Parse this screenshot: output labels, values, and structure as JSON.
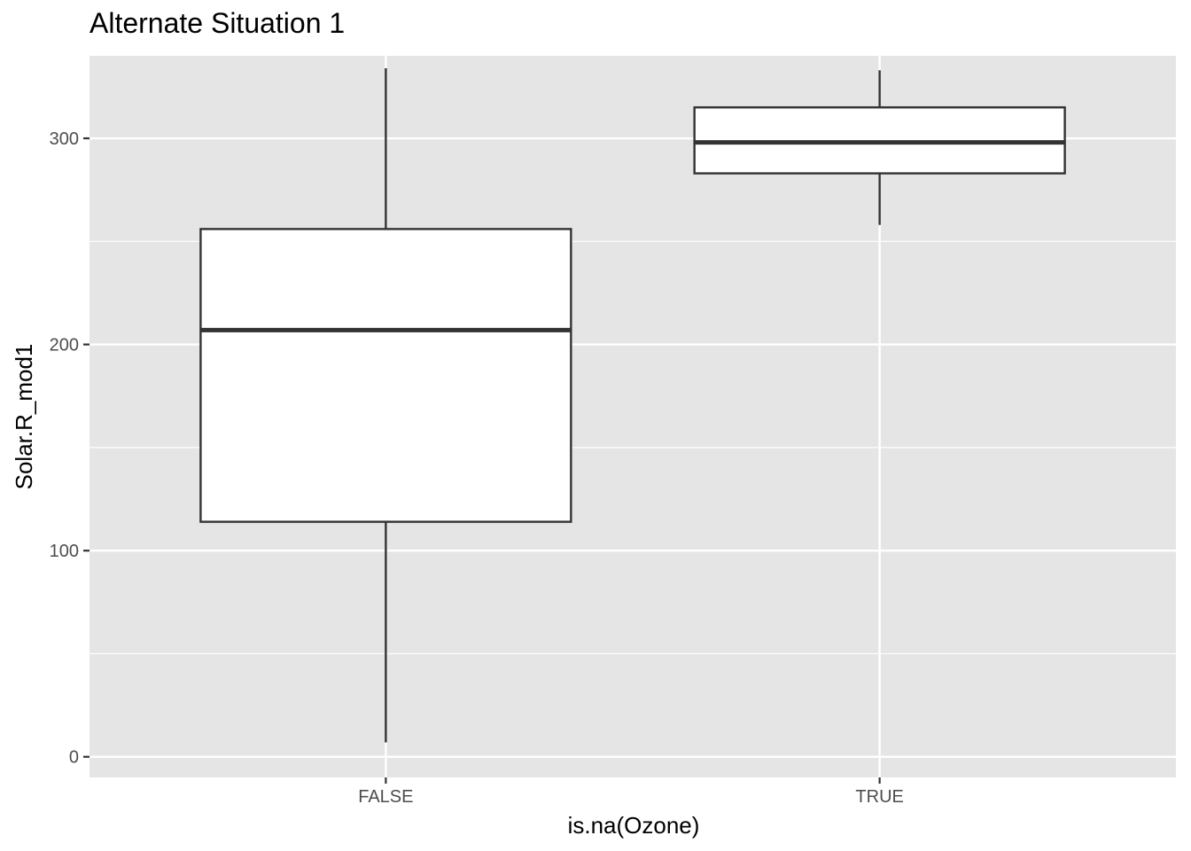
{
  "chart_data": {
    "type": "boxplot",
    "title": "Alternate Situation 1",
    "xlabel": "is.na(Ozone)",
    "ylabel": "Solar.R_mod1",
    "categories": [
      "FALSE",
      "TRUE"
    ],
    "ylim": [
      -10,
      340
    ],
    "y_ticks": [
      0,
      100,
      200,
      300
    ],
    "grid": true,
    "boxes": [
      {
        "category": "FALSE",
        "min": 7,
        "q1": 114,
        "median": 207,
        "q3": 256,
        "max": 334
      },
      {
        "category": "TRUE",
        "min": 258,
        "q1": 283,
        "median": 298,
        "q3": 315,
        "max": 333
      }
    ],
    "colors": {
      "panel": "#e5e5e5",
      "grid": "#ffffff",
      "box_fill": "#ffffff",
      "box_stroke": "#333333",
      "tick_text": "#4d4d4d"
    }
  }
}
